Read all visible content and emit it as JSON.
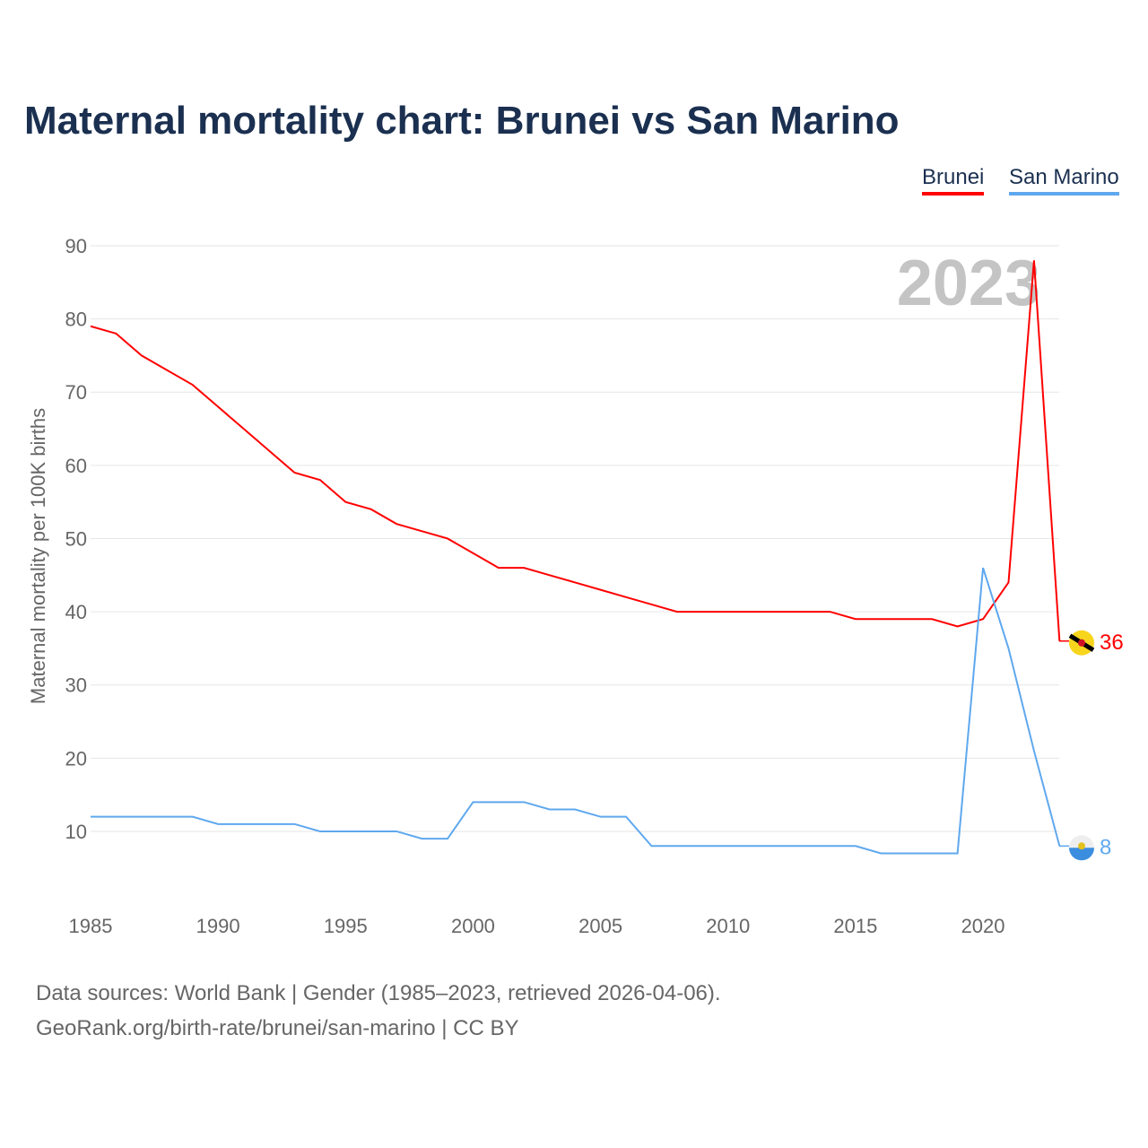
{
  "title": "Maternal mortality chart: Brunei vs San Marino",
  "source_line1": "Data sources: World Bank | Gender (1985–2023, retrieved 2026-04-06).",
  "source_line2": "GeoRank.org/birth-rate/brunei/san-marino | CC BY",
  "chart_data": {
    "type": "line",
    "title": "Maternal mortality chart: Brunei vs San Marino",
    "ylabel": "Maternal mortality per 100K births",
    "xlabel": "",
    "year_label": "2023",
    "ylim": [
      0,
      90
    ],
    "xlim": [
      1985,
      2023
    ],
    "yticks": [
      10,
      20,
      30,
      40,
      50,
      60,
      70,
      80,
      90
    ],
    "xticks": [
      1985,
      1990,
      1995,
      2000,
      2005,
      2010,
      2015,
      2020
    ],
    "grid": true,
    "legend_placement": "top-right",
    "x": [
      1985,
      1986,
      1987,
      1988,
      1989,
      1990,
      1991,
      1992,
      1993,
      1994,
      1995,
      1996,
      1997,
      1998,
      1999,
      2000,
      2001,
      2002,
      2003,
      2004,
      2005,
      2006,
      2007,
      2008,
      2009,
      2010,
      2011,
      2012,
      2013,
      2014,
      2015,
      2016,
      2017,
      2018,
      2019,
      2020,
      2021,
      2022,
      2023
    ],
    "series": [
      {
        "name": "Brunei",
        "color": "#ff0000",
        "end_label": "36",
        "values": [
          79,
          78,
          75,
          73,
          71,
          68,
          65,
          62,
          59,
          58,
          55,
          54,
          52,
          51,
          50,
          48,
          46,
          46,
          45,
          44,
          43,
          42,
          41,
          40,
          40,
          40,
          40,
          40,
          40,
          40,
          39,
          39,
          39,
          39,
          38,
          39,
          44,
          88,
          36
        ]
      },
      {
        "name": "San Marino",
        "color": "#5fa8ee",
        "end_label": "8",
        "values": [
          12,
          12,
          12,
          12,
          12,
          11,
          11,
          11,
          11,
          10,
          10,
          10,
          10,
          9,
          9,
          14,
          14,
          14,
          13,
          13,
          12,
          12,
          8,
          8,
          8,
          8,
          8,
          8,
          8,
          8,
          8,
          7,
          7,
          7,
          7,
          46,
          35,
          21,
          8
        ]
      }
    ]
  }
}
